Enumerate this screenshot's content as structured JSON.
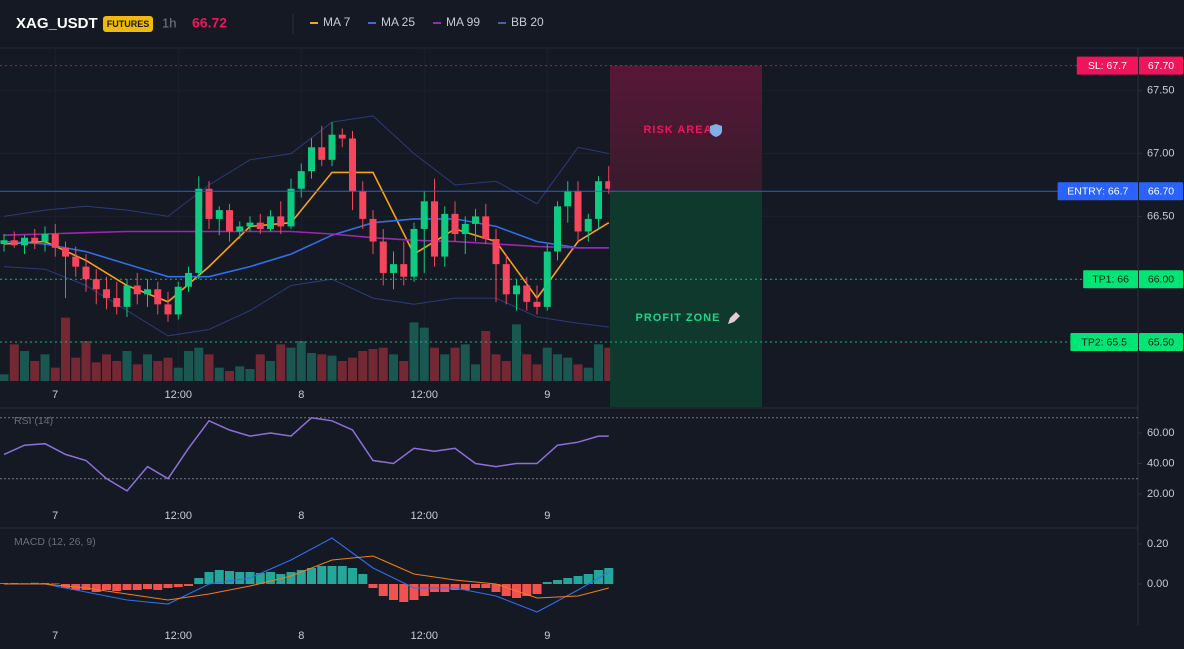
{
  "header": {
    "symbol": "XAG_USDT",
    "badge": "FUTURES",
    "interval": "1h",
    "price": "66.72"
  },
  "chart_data": [
    {
      "type": "candlestick",
      "grid": true,
      "x": [
        0,
        1,
        2,
        3,
        4,
        5,
        6,
        7,
        8,
        9,
        10,
        11,
        12,
        13,
        14,
        15,
        16,
        17,
        18,
        19,
        20,
        21,
        22,
        23,
        24,
        25,
        26,
        27,
        28,
        29,
        30,
        31,
        32,
        33,
        34,
        35,
        36,
        37,
        38,
        39,
        40,
        41,
        42,
        43,
        44,
        45,
        46,
        47,
        48,
        49,
        50,
        51,
        52,
        53,
        54,
        55,
        56,
        57,
        58,
        59
      ],
      "open": [
        66.28,
        66.31,
        66.27,
        66.33,
        66.3,
        66.36,
        66.25,
        66.18,
        66.1,
        66.0,
        65.92,
        65.85,
        65.78,
        65.95,
        65.88,
        65.92,
        65.8,
        65.72,
        65.94,
        66.05,
        66.72,
        66.48,
        66.55,
        66.38,
        66.42,
        66.45,
        66.4,
        66.5,
        66.42,
        66.72,
        66.86,
        67.05,
        66.95,
        67.15,
        67.12,
        66.7,
        66.48,
        66.3,
        66.05,
        66.12,
        66.02,
        66.4,
        66.62,
        66.18,
        66.52,
        66.36,
        66.44,
        66.5,
        66.32,
        66.12,
        65.88,
        65.95,
        65.82,
        65.78,
        66.22,
        66.58,
        66.7,
        66.38,
        66.48,
        66.78
      ],
      "high": [
        66.36,
        66.38,
        66.35,
        66.4,
        66.42,
        66.44,
        66.3,
        66.26,
        66.2,
        66.08,
        66.02,
        65.98,
        66.0,
        66.05,
        66.0,
        65.98,
        65.9,
        65.98,
        66.1,
        66.82,
        66.78,
        66.58,
        66.6,
        66.46,
        66.5,
        66.52,
        66.55,
        66.62,
        66.8,
        66.92,
        67.12,
        67.22,
        67.25,
        67.2,
        67.18,
        66.78,
        66.55,
        66.4,
        66.22,
        66.3,
        66.45,
        66.7,
        66.8,
        66.58,
        66.62,
        66.5,
        66.56,
        66.6,
        66.4,
        66.2,
        66.0,
        66.02,
        65.95,
        66.28,
        66.62,
        66.78,
        66.78,
        66.52,
        66.82,
        66.9
      ],
      "low": [
        66.22,
        66.25,
        66.2,
        66.24,
        66.22,
        66.18,
        65.85,
        66.02,
        65.9,
        65.8,
        65.76,
        65.72,
        65.7,
        65.8,
        65.78,
        65.72,
        65.66,
        65.68,
        65.9,
        66.0,
        66.4,
        66.35,
        66.3,
        66.32,
        66.38,
        66.36,
        66.38,
        66.36,
        66.4,
        66.65,
        66.8,
        66.9,
        66.9,
        67.05,
        66.55,
        66.4,
        66.2,
        65.95,
        65.92,
        65.95,
        65.98,
        66.05,
        66.1,
        66.1,
        66.3,
        66.2,
        66.3,
        66.28,
        65.82,
        65.8,
        65.75,
        65.75,
        65.72,
        65.75,
        66.15,
        66.45,
        66.3,
        66.3,
        66.4,
        66.68
      ],
      "close": [
        66.31,
        66.27,
        66.33,
        66.3,
        66.36,
        66.25,
        66.18,
        66.1,
        66.0,
        65.92,
        65.85,
        65.78,
        65.95,
        65.88,
        65.92,
        65.8,
        65.72,
        65.94,
        66.05,
        66.72,
        66.48,
        66.55,
        66.38,
        66.42,
        66.45,
        66.4,
        66.5,
        66.42,
        66.72,
        66.86,
        67.05,
        66.95,
        67.15,
        67.12,
        66.7,
        66.48,
        66.3,
        66.05,
        66.12,
        66.02,
        66.4,
        66.62,
        66.18,
        66.52,
        66.36,
        66.44,
        66.5,
        66.32,
        66.12,
        65.88,
        65.95,
        65.82,
        65.78,
        66.22,
        66.58,
        66.7,
        66.38,
        66.48,
        66.78,
        66.72
      ],
      "up_color": "#0ecb81",
      "down_color": "#f6465d",
      "volume": {
        "values": [
          10,
          55,
          45,
          30,
          40,
          20,
          95,
          35,
          60,
          28,
          40,
          30,
          45,
          25,
          40,
          30,
          35,
          20,
          45,
          50,
          40,
          20,
          15,
          22,
          18,
          40,
          30,
          55,
          50,
          60,
          42,
          40,
          38,
          30,
          35,
          45,
          48,
          50,
          40,
          30,
          88,
          80,
          50,
          40,
          50,
          55,
          25,
          75,
          40,
          30,
          85,
          40,
          25,
          50,
          40,
          35,
          25,
          20,
          55,
          50
        ],
        "ylim": [
          0,
          150
        ],
        "up_color": "#1b5e57",
        "down_color": "#7d2a36"
      },
      "series": [
        {
          "name": "MA 7",
          "color": "#f7a21b",
          "x": [
            0,
            4,
            8,
            12,
            16,
            20,
            24,
            28,
            32,
            36,
            40,
            44,
            48,
            52,
            56,
            59
          ],
          "values": [
            66.28,
            66.3,
            66.15,
            65.95,
            65.82,
            66.1,
            66.42,
            66.45,
            66.85,
            66.85,
            66.2,
            66.4,
            66.3,
            65.85,
            66.3,
            66.45
          ]
        },
        {
          "name": "MA 25",
          "color": "#2f6fed",
          "x": [
            0,
            4,
            8,
            12,
            16,
            20,
            24,
            28,
            32,
            36,
            40,
            44,
            48,
            52,
            56,
            59
          ],
          "values": [
            66.3,
            66.28,
            66.22,
            66.12,
            66.02,
            66.02,
            66.1,
            66.2,
            66.35,
            66.45,
            66.48,
            66.48,
            66.42,
            66.3,
            66.25,
            66.25
          ]
        },
        {
          "name": "MA 99",
          "color": "#9c27b0",
          "x": [
            0,
            4,
            8,
            12,
            16,
            20,
            24,
            28,
            32,
            36,
            40,
            44,
            48,
            52,
            56,
            59
          ],
          "values": [
            66.35,
            66.36,
            66.37,
            66.38,
            66.38,
            66.38,
            66.38,
            66.38,
            66.36,
            66.33,
            66.31,
            66.3,
            66.28,
            66.26,
            66.25,
            66.25
          ]
        },
        {
          "name": "BB 20",
          "color": "#2a3c7a",
          "x": [
            0,
            4,
            8,
            12,
            16,
            20,
            24,
            28,
            32,
            36,
            40,
            44,
            48,
            52,
            56,
            59
          ],
          "upper": [
            66.5,
            66.55,
            66.58,
            66.55,
            66.5,
            66.75,
            66.95,
            67.0,
            67.25,
            67.3,
            67.0,
            66.75,
            66.78,
            66.6,
            67.05,
            67.0
          ],
          "lower": [
            66.1,
            66.08,
            65.95,
            65.75,
            65.55,
            65.6,
            65.75,
            65.95,
            66.0,
            65.85,
            65.8,
            65.85,
            65.85,
            65.7,
            65.65,
            65.62
          ]
        }
      ],
      "price_lines": [
        {
          "label": "SL: 67.7",
          "value": 67.7,
          "value_label": "67.70",
          "color": "#f0145a",
          "style": "dotted"
        },
        {
          "label": "ENTRY: 66.7",
          "value": 66.7,
          "value_label": "66.70",
          "color": "#2962ff",
          "style": "solid"
        },
        {
          "label": "TP1: 66",
          "value": 66,
          "value_label": "66.00",
          "color": "#00e676",
          "style": "dotted"
        },
        {
          "label": "TP2: 65.5",
          "value": 65.5,
          "value_label": "65.50",
          "color": "#00e676",
          "style": "dotted"
        }
      ],
      "zones": {
        "risk": "RISK AREA",
        "profit": "PROFIT ZONE"
      },
      "xlim": [
        -0.39,
        110.63
      ],
      "xticks": [
        {
          "value": 5,
          "label": "7"
        },
        {
          "value": 17,
          "label": "12:00"
        },
        {
          "value": 29,
          "label": "8"
        },
        {
          "value": 41,
          "label": "12:00"
        },
        {
          "value": 53,
          "label": "9"
        }
      ],
      "ylim": [
        65.19,
        67.84
      ],
      "yticks": [
        {
          "value": 67.5,
          "label": "67.50"
        },
        {
          "value": 67,
          "label": "67.00"
        },
        {
          "value": 66.5,
          "label": "66.50"
        },
        {
          "value": 66,
          "label": "66.00"
        },
        {
          "value": 65.5,
          "label": "65.50"
        }
      ]
    },
    {
      "type": "line",
      "title": "RSI (14)",
      "color": "#8e6fd8",
      "x": [
        0,
        2,
        4,
        6,
        8,
        10,
        12,
        14,
        16,
        18,
        20,
        22,
        24,
        26,
        28,
        30,
        32,
        34,
        36,
        38,
        40,
        42,
        44,
        46,
        48,
        50,
        52,
        54,
        56,
        58,
        59
      ],
      "values": [
        46,
        52,
        53,
        46,
        42,
        30,
        22,
        38,
        30,
        50,
        68,
        62,
        58,
        60,
        58,
        70,
        68,
        62,
        42,
        40,
        50,
        48,
        50,
        40,
        38,
        40,
        40,
        52,
        54,
        58,
        58
      ],
      "levels": [
        70,
        30
      ],
      "xlim": [
        -0.39,
        110.63
      ],
      "xticks": [
        {
          "value": 5,
          "label": "7"
        },
        {
          "value": 17,
          "label": "12:00"
        },
        {
          "value": 29,
          "label": "8"
        },
        {
          "value": 41,
          "label": "12:00"
        },
        {
          "value": 53,
          "label": "9"
        }
      ],
      "ylim": [
        -2.3,
        76.4
      ],
      "yticks": [
        {
          "value": 60,
          "label": "60.00"
        },
        {
          "value": 40,
          "label": "40.00"
        },
        {
          "value": 20,
          "label": "20.00"
        }
      ]
    },
    {
      "type": "macd",
      "title": "MACD (12, 26, 9)",
      "x": [
        0,
        1,
        2,
        3,
        4,
        5,
        6,
        7,
        8,
        9,
        10,
        11,
        12,
        13,
        14,
        15,
        16,
        17,
        18,
        19,
        20,
        21,
        22,
        23,
        24,
        25,
        26,
        27,
        28,
        29,
        30,
        31,
        32,
        33,
        34,
        35,
        36,
        37,
        38,
        39,
        40,
        41,
        42,
        43,
        44,
        45,
        46,
        47,
        48,
        49,
        50,
        51,
        52,
        53,
        54,
        55,
        56,
        57,
        58,
        59
      ],
      "histogram": [
        0.005,
        0.005,
        0.004,
        0.006,
        0.005,
        0.003,
        -0.02,
        -0.03,
        -0.03,
        -0.04,
        -0.03,
        -0.035,
        -0.03,
        -0.03,
        -0.025,
        -0.03,
        -0.02,
        -0.015,
        -0.01,
        0.03,
        0.06,
        0.07,
        0.065,
        0.06,
        0.06,
        0.055,
        0.06,
        0.05,
        0.06,
        0.07,
        0.08,
        0.09,
        0.09,
        0.09,
        0.08,
        0.05,
        -0.02,
        -0.06,
        -0.08,
        -0.09,
        -0.08,
        -0.06,
        -0.04,
        -0.04,
        -0.03,
        -0.03,
        -0.02,
        -0.02,
        -0.04,
        -0.06,
        -0.07,
        -0.06,
        -0.05,
        0.01,
        0.02,
        0.03,
        0.04,
        0.05,
        0.07,
        0.08
      ],
      "up_color": "#26a69a",
      "down_color": "#ef5350",
      "series": [
        {
          "name": "MACD",
          "color": "#2f6fed",
          "x": [
            0,
            4,
            8,
            12,
            16,
            20,
            24,
            28,
            32,
            36,
            40,
            44,
            48,
            52,
            56,
            59
          ],
          "values": [
            0.0,
            0.0,
            -0.04,
            -0.08,
            -0.1,
            0.0,
            0.03,
            0.12,
            0.23,
            0.08,
            -0.02,
            -0.02,
            -0.06,
            -0.14,
            -0.03,
            0.06
          ]
        },
        {
          "name": "Signal",
          "color": "#f07d1a",
          "x": [
            0,
            4,
            8,
            12,
            16,
            20,
            24,
            28,
            32,
            36,
            40,
            44,
            48,
            52,
            56,
            59
          ],
          "values": [
            0.0,
            0.0,
            -0.02,
            -0.05,
            -0.08,
            -0.05,
            -0.01,
            0.04,
            0.12,
            0.14,
            0.05,
            0.02,
            0.0,
            -0.07,
            -0.06,
            -0.02
          ]
        }
      ],
      "xlim": [
        -0.39,
        110.63
      ],
      "xticks": [
        {
          "value": 5,
          "label": "7"
        },
        {
          "value": 17,
          "label": "12:00"
        },
        {
          "value": 29,
          "label": "8"
        },
        {
          "value": 41,
          "label": "12:00"
        },
        {
          "value": 53,
          "label": "9"
        }
      ],
      "ylim": [
        -0.205,
        0.28
      ],
      "yticks": [
        {
          "value": 0.2,
          "label": "0.20"
        },
        {
          "value": 0,
          "label": "0.00"
        }
      ]
    }
  ]
}
